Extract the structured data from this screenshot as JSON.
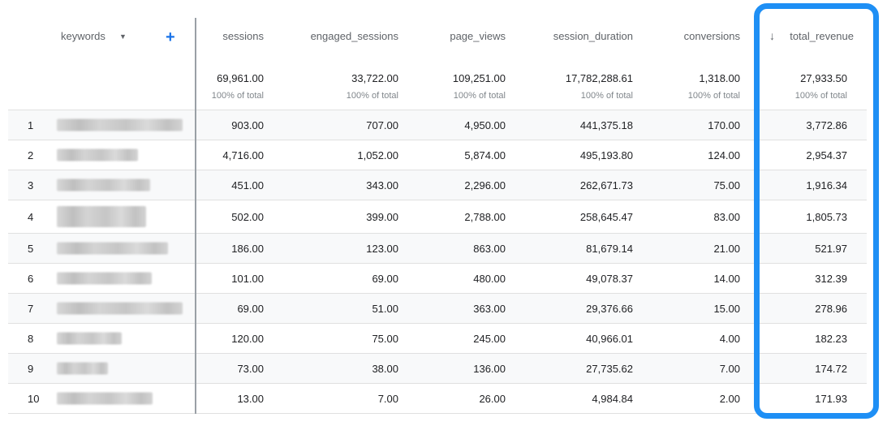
{
  "header": {
    "dimension_label": "keywords",
    "columns": [
      {
        "label": "sessions",
        "total": "69,961.00",
        "pct": "100% of total"
      },
      {
        "label": "engaged_sessions",
        "total": "33,722.00",
        "pct": "100% of total"
      },
      {
        "label": "page_views",
        "total": "109,251.00",
        "pct": "100% of total"
      },
      {
        "label": "session_duration",
        "total": "17,782,288.61",
        "pct": "100% of total"
      },
      {
        "label": "conversions",
        "total": "1,318.00",
        "pct": "100% of total"
      },
      {
        "label": "total_revenue",
        "total": "27,933.50",
        "pct": "100% of total"
      }
    ],
    "sort_icon": "arrow-down-icon",
    "add_icon": "plus-icon",
    "dropdown_icon": "caret-down-icon"
  },
  "rows": [
    {
      "index": "1",
      "values": [
        "903.00",
        "707.00",
        "4,950.00",
        "441,375.18",
        "170.00",
        "3,772.86"
      ]
    },
    {
      "index": "2",
      "values": [
        "4,716.00",
        "1,052.00",
        "5,874.00",
        "495,193.80",
        "124.00",
        "2,954.37"
      ]
    },
    {
      "index": "3",
      "values": [
        "451.00",
        "343.00",
        "2,296.00",
        "262,671.73",
        "75.00",
        "1,916.34"
      ]
    },
    {
      "index": "4",
      "values": [
        "502.00",
        "399.00",
        "2,788.00",
        "258,645.47",
        "83.00",
        "1,805.73"
      ]
    },
    {
      "index": "5",
      "values": [
        "186.00",
        "123.00",
        "863.00",
        "81,679.14",
        "21.00",
        "521.97"
      ]
    },
    {
      "index": "6",
      "values": [
        "101.00",
        "69.00",
        "480.00",
        "49,078.37",
        "14.00",
        "312.39"
      ]
    },
    {
      "index": "7",
      "values": [
        "69.00",
        "51.00",
        "363.00",
        "29,376.66",
        "15.00",
        "278.96"
      ]
    },
    {
      "index": "8",
      "values": [
        "120.00",
        "75.00",
        "245.00",
        "40,966.01",
        "4.00",
        "182.23"
      ]
    },
    {
      "index": "9",
      "values": [
        "73.00",
        "38.00",
        "136.00",
        "27,735.62",
        "7.00",
        "174.72"
      ]
    },
    {
      "index": "10",
      "values": [
        "13.00",
        "7.00",
        "26.00",
        "4,984.84",
        "2.00",
        "171.93"
      ]
    }
  ],
  "highlight_color": "#1e8ff5",
  "accent_color": "#1a73e8"
}
